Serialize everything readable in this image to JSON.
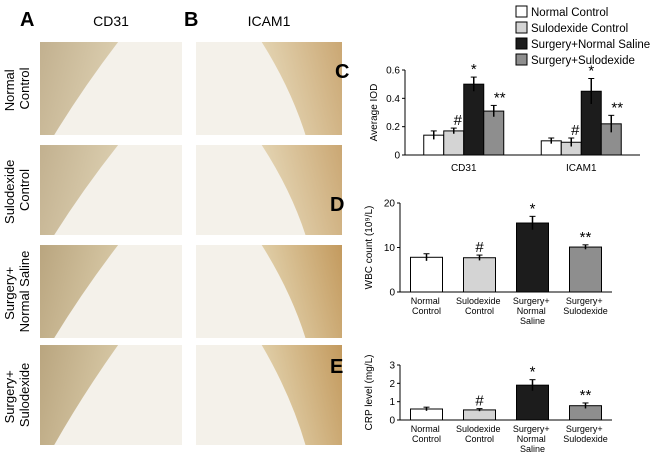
{
  "micrographs": {
    "panels": [
      {
        "label": "A",
        "stain": "CD31"
      },
      {
        "label": "B",
        "stain": "ICAM1"
      }
    ],
    "rows": [
      "Normal Control",
      "Sulodexide Control",
      "Surgery+ Normal Saline",
      "Surgery+ Sulodexide"
    ]
  },
  "chart_data": [
    {
      "type": "grouped-bar",
      "panel": "C",
      "ylabel": "Average IOD",
      "categories": [
        "CD31",
        "ICAM1"
      ],
      "series": [
        {
          "name": "Normal Control",
          "color": "#ffffff",
          "values": [
            0.14,
            0.1
          ],
          "errors": [
            0.03,
            0.02
          ]
        },
        {
          "name": "Sulodexide Control",
          "color": "#d4d4d4",
          "values": [
            0.17,
            0.09
          ],
          "errors": [
            0.02,
            0.03
          ],
          "annotation": "#"
        },
        {
          "name": "Surgery+Normal Saline",
          "color": "#1c1c1c",
          "values": [
            0.5,
            0.45
          ],
          "errors": [
            0.05,
            0.09
          ],
          "annotation": "*"
        },
        {
          "name": "Surgery+Sulodexide",
          "color": "#8e8e8e",
          "values": [
            0.31,
            0.22
          ],
          "errors": [
            0.04,
            0.06
          ],
          "annotation": "**"
        }
      ],
      "ylim": [
        0,
        0.6
      ],
      "yticks": [
        0,
        0.2,
        0.4,
        0.6
      ]
    },
    {
      "type": "bar",
      "panel": "D",
      "ylabel": "WBC count (10⁹/L)",
      "categories": [
        "Normal Control",
        "Sulodexide Control",
        "Surgery+ Normal Saline",
        "Surgery+ Sulodexide"
      ],
      "values": [
        7.8,
        7.7,
        15.5,
        10.1
      ],
      "errors": [
        0.8,
        0.6,
        1.5,
        0.5
      ],
      "colors": [
        "#ffffff",
        "#d4d4d4",
        "#1c1c1c",
        "#8e8e8e"
      ],
      "annotations": [
        {
          "index": 1,
          "text": "#"
        },
        {
          "index": 2,
          "text": "*"
        },
        {
          "index": 3,
          "text": "**"
        }
      ],
      "ylim": [
        0,
        20
      ],
      "yticks": [
        0,
        10,
        20
      ]
    },
    {
      "type": "bar",
      "panel": "E",
      "ylabel": "CRP level (mg/L)",
      "categories": [
        "Normal Control",
        "Sulodexide Control",
        "Surgery+ Normal Saline",
        "Surgery+ Sulodexide"
      ],
      "values": [
        0.6,
        0.55,
        1.9,
        0.78
      ],
      "errors": [
        0.1,
        0.07,
        0.3,
        0.15
      ],
      "colors": [
        "#ffffff",
        "#d4d4d4",
        "#1c1c1c",
        "#8e8e8e"
      ],
      "annotations": [
        {
          "index": 1,
          "text": "#"
        },
        {
          "index": 2,
          "text": "*"
        },
        {
          "index": 3,
          "text": "**"
        }
      ],
      "ylim": [
        0,
        3
      ],
      "yticks": [
        0,
        1,
        2,
        3
      ]
    }
  ]
}
